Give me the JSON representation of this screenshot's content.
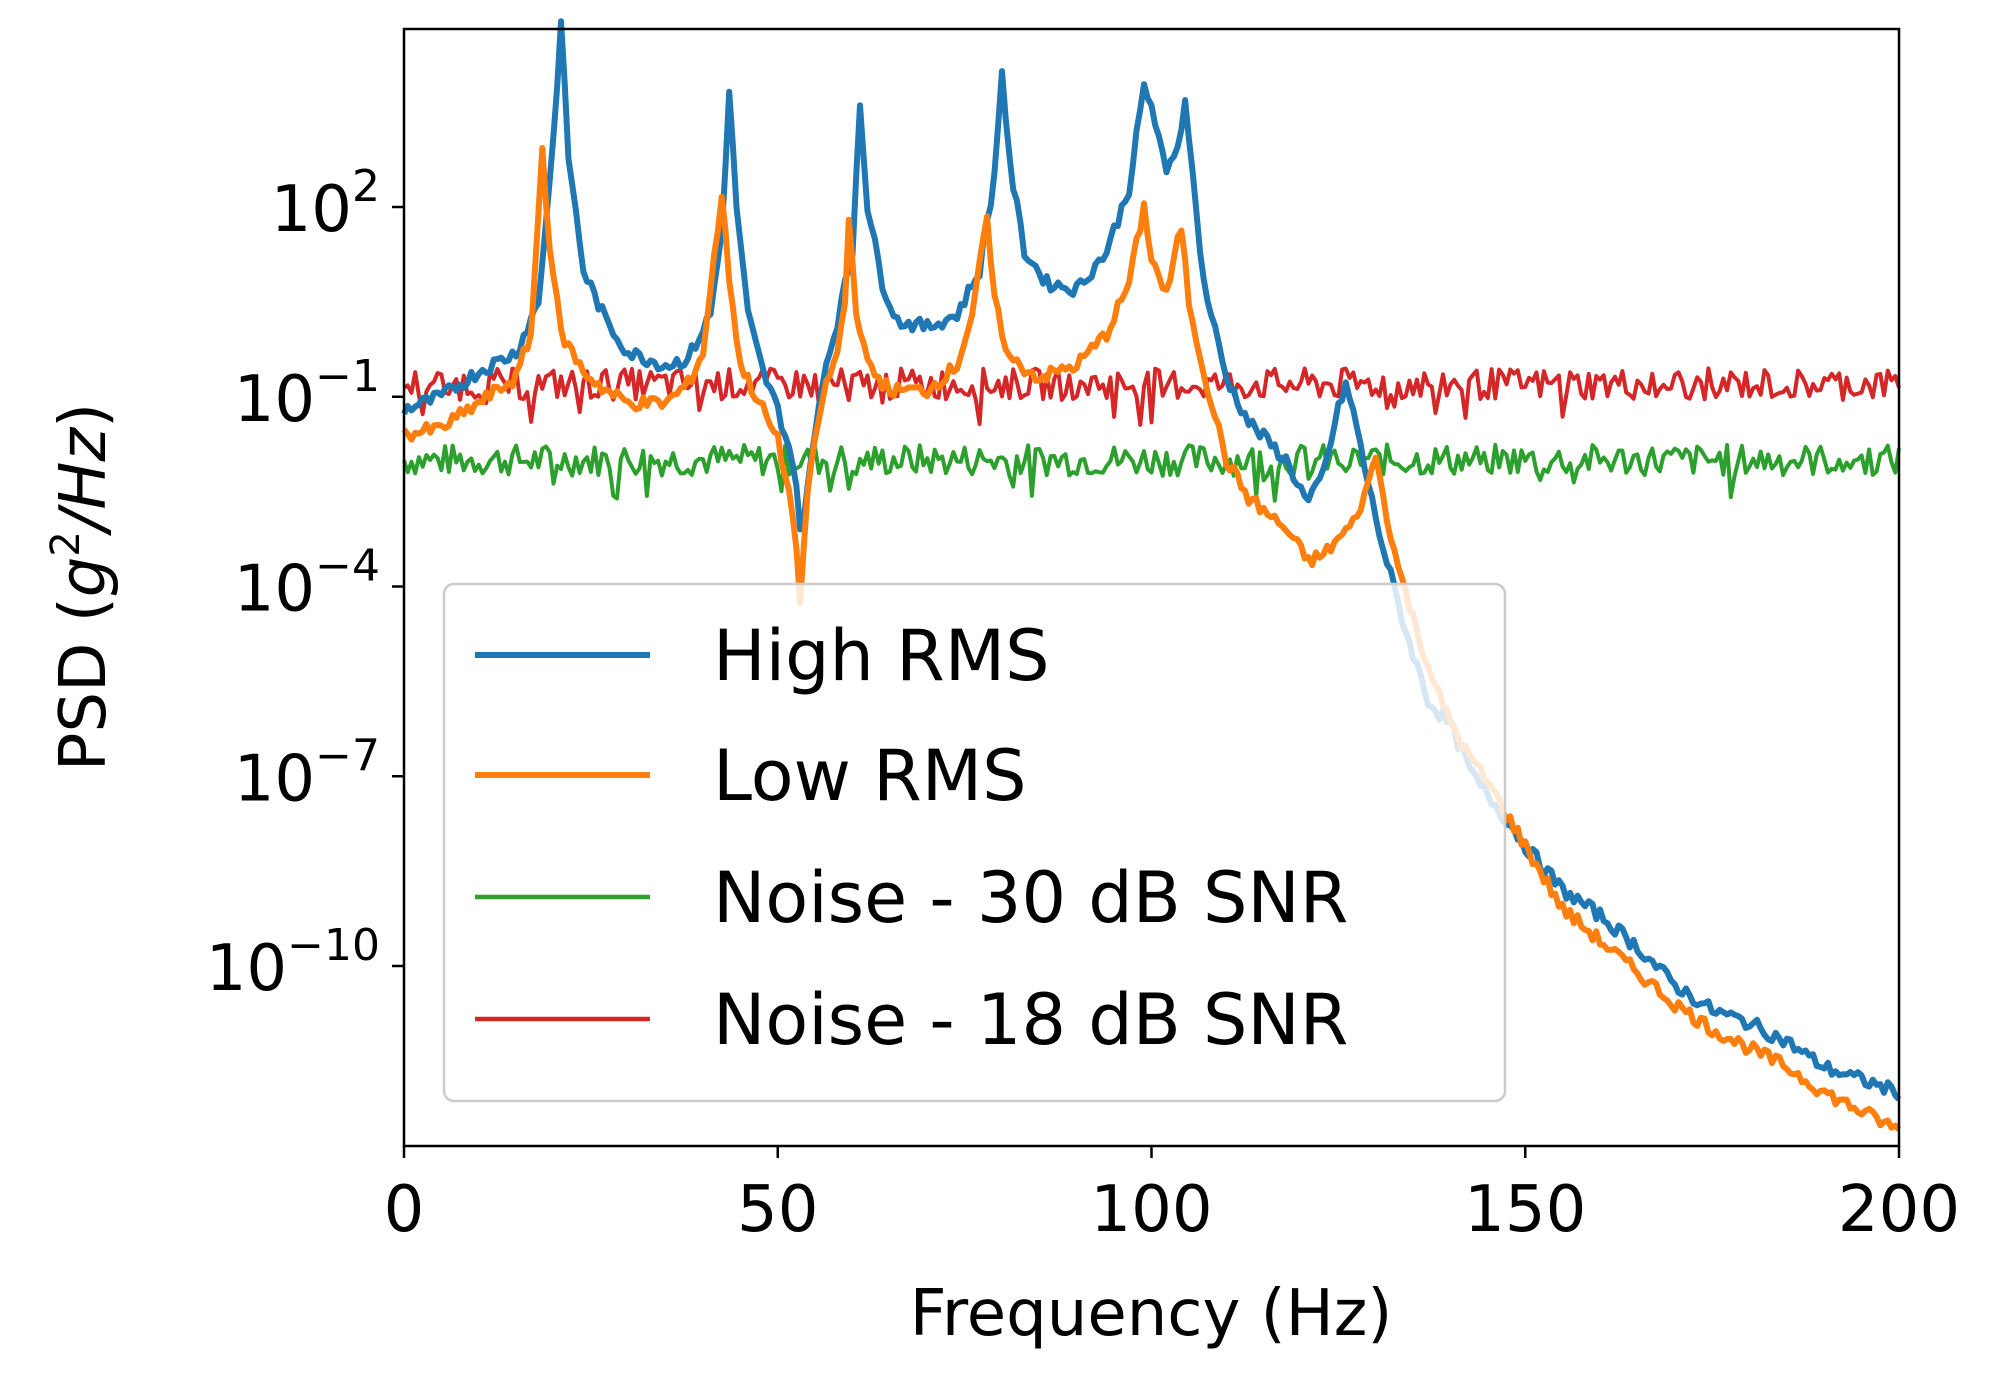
{
  "chart_data": {
    "type": "line",
    "title": "",
    "xlabel": "Frequency (Hz)",
    "ylabel": "PSD (g²/Hz)",
    "xlim": [
      0,
      200
    ],
    "yscale": "log",
    "ylim_exponents": [
      -13,
      5
    ],
    "x_ticks": [
      0,
      50,
      100,
      150,
      200
    ],
    "x_tick_labels": [
      "0",
      "50",
      "100",
      "150",
      "200"
    ],
    "y_ticks": [
      {
        "base": "10",
        "exp": "2",
        "value_exp": 2
      },
      {
        "base": "10",
        "exp": "−1",
        "value_exp": -1
      },
      {
        "base": "10",
        "exp": "−4",
        "value_exp": -4
      },
      {
        "base": "10",
        "exp": "−7",
        "value_exp": -7
      },
      {
        "base": "10",
        "exp": "−10",
        "value_exp": -10
      }
    ],
    "grid": false,
    "legend_position": "lower-left",
    "series": [
      {
        "name": "High RMS",
        "color": "#1f77b4",
        "points_log10": [
          [
            0,
            -1.2
          ],
          [
            5,
            -1.0
          ],
          [
            10,
            -0.6
          ],
          [
            15,
            -0.3
          ],
          [
            18,
            0.5
          ],
          [
            20,
            3.1
          ],
          [
            21,
            4.9
          ],
          [
            22,
            2.8
          ],
          [
            24,
            1.0
          ],
          [
            27,
            0.2
          ],
          [
            30,
            -0.3
          ],
          [
            35,
            -0.5
          ],
          [
            38,
            -0.4
          ],
          [
            41,
            0.3
          ],
          [
            42.5,
            1.6
          ],
          [
            43.5,
            3.8
          ],
          [
            44.5,
            2.0
          ],
          [
            46,
            0.3
          ],
          [
            48,
            -0.6
          ],
          [
            50,
            -1.2
          ],
          [
            52,
            -2.0
          ],
          [
            53.2,
            -3.2
          ],
          [
            54.5,
            -2.0
          ],
          [
            56,
            -0.7
          ],
          [
            58,
            0.2
          ],
          [
            60,
            1.3
          ],
          [
            61,
            3.7
          ],
          [
            62,
            2.0
          ],
          [
            64,
            0.8
          ],
          [
            66,
            0.2
          ],
          [
            70,
            0.1
          ],
          [
            74,
            0.3
          ],
          [
            77,
            1.0
          ],
          [
            79,
            2.5
          ],
          [
            80,
            4.2
          ],
          [
            81,
            2.7
          ],
          [
            83,
            1.3
          ],
          [
            86,
            0.8
          ],
          [
            90,
            0.7
          ],
          [
            94,
            1.3
          ],
          [
            97,
            2.3
          ],
          [
            99,
            3.9
          ],
          [
            100,
            3.6
          ],
          [
            102,
            2.5
          ],
          [
            104,
            3.2
          ],
          [
            104.5,
            3.8
          ],
          [
            105.5,
            2.5
          ],
          [
            107,
            0.8
          ],
          [
            110,
            -0.7
          ],
          [
            113,
            -1.4
          ],
          [
            118,
            -2.0
          ],
          [
            121,
            -2.7
          ],
          [
            123,
            -2.2
          ],
          [
            125,
            -1.2
          ],
          [
            126,
            -0.8
          ],
          [
            127.5,
            -1.5
          ],
          [
            129,
            -2.4
          ],
          [
            131,
            -3.4
          ],
          [
            134,
            -4.7
          ],
          [
            137,
            -5.8
          ],
          [
            140,
            -6.2
          ],
          [
            143,
            -7.0
          ],
          [
            147,
            -7.6
          ],
          [
            150,
            -8.1
          ],
          [
            155,
            -8.8
          ],
          [
            160,
            -9.2
          ],
          [
            165,
            -9.7
          ],
          [
            170,
            -10.3
          ],
          [
            175,
            -10.7
          ],
          [
            180,
            -10.9
          ],
          [
            185,
            -11.2
          ],
          [
            190,
            -11.6
          ],
          [
            195,
            -11.8
          ],
          [
            200,
            -12.0
          ]
        ]
      },
      {
        "name": "Low RMS",
        "color": "#ff7f0e",
        "points_log10": [
          [
            0,
            -1.6
          ],
          [
            5,
            -1.5
          ],
          [
            10,
            -1.1
          ],
          [
            15,
            -0.7
          ],
          [
            17,
            0.0
          ],
          [
            18.5,
            2.9
          ],
          [
            19.5,
            1.4
          ],
          [
            21,
            0.0
          ],
          [
            24,
            -0.6
          ],
          [
            27,
            -0.9
          ],
          [
            30,
            -1.1
          ],
          [
            35,
            -1.1
          ],
          [
            38,
            -0.8
          ],
          [
            40,
            -0.3
          ],
          [
            41.5,
            1.2
          ],
          [
            42.5,
            2.2
          ],
          [
            43.5,
            0.9
          ],
          [
            45,
            -0.5
          ],
          [
            48,
            -1.2
          ],
          [
            50,
            -1.7
          ],
          [
            52,
            -2.8
          ],
          [
            53,
            -4.2
          ],
          [
            54,
            -2.5
          ],
          [
            56,
            -1.0
          ],
          [
            58,
            -0.3
          ],
          [
            59,
            0.5
          ],
          [
            59.5,
            1.8
          ],
          [
            60.5,
            0.4
          ],
          [
            62,
            -0.5
          ],
          [
            65,
            -0.9
          ],
          [
            70,
            -0.9
          ],
          [
            74,
            -0.5
          ],
          [
            76,
            0.3
          ],
          [
            78,
            1.8
          ],
          [
            79,
            0.5
          ],
          [
            81,
            -0.4
          ],
          [
            85,
            -0.7
          ],
          [
            90,
            -0.5
          ],
          [
            94,
            0.0
          ],
          [
            97,
            0.8
          ],
          [
            99,
            2.0
          ],
          [
            100,
            1.2
          ],
          [
            102,
            0.6
          ],
          [
            104,
            1.7
          ],
          [
            105,
            0.5
          ],
          [
            107,
            -0.6
          ],
          [
            110,
            -2.0
          ],
          [
            113,
            -2.6
          ],
          [
            118,
            -3.1
          ],
          [
            121,
            -3.6
          ],
          [
            123,
            -3.5
          ],
          [
            127,
            -3.0
          ],
          [
            129,
            -2.4
          ],
          [
            130,
            -1.9
          ],
          [
            131,
            -2.6
          ],
          [
            133,
            -3.7
          ],
          [
            136,
            -4.9
          ],
          [
            139,
            -5.9
          ],
          [
            142,
            -6.6
          ],
          [
            145,
            -7.1
          ],
          [
            150,
            -8.1
          ],
          [
            155,
            -9.1
          ],
          [
            160,
            -9.6
          ],
          [
            165,
            -10.1
          ],
          [
            170,
            -10.6
          ],
          [
            175,
            -11.0
          ],
          [
            180,
            -11.3
          ],
          [
            185,
            -11.6
          ],
          [
            190,
            -12.0
          ],
          [
            195,
            -12.3
          ],
          [
            200,
            -12.6
          ]
        ]
      },
      {
        "name": "Noise - 30 dB SNR",
        "color": "#2ca02c",
        "mean_log10": -2.0,
        "spread_log10": 0.25
      },
      {
        "name": "Noise - 18 dB SNR",
        "color": "#d62728",
        "mean_log10": -0.8,
        "spread_log10": 0.25
      }
    ]
  }
}
